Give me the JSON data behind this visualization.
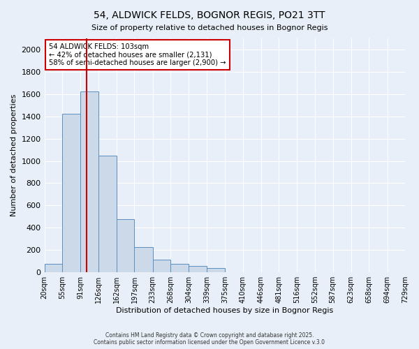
{
  "title_line1": "54, ALDWICK FELDS, BOGNOR REGIS, PO21 3TT",
  "title_line2": "Size of property relative to detached houses in Bognor Regis",
  "xlabel": "Distribution of detached houses by size in Bognor Regis",
  "ylabel": "Number of detached properties",
  "bin_labels": [
    "20sqm",
    "55sqm",
    "91sqm",
    "126sqm",
    "162sqm",
    "197sqm",
    "233sqm",
    "268sqm",
    "304sqm",
    "339sqm",
    "375sqm",
    "410sqm",
    "446sqm",
    "481sqm",
    "516sqm",
    "552sqm",
    "587sqm",
    "623sqm",
    "658sqm",
    "694sqm",
    "729sqm"
  ],
  "bin_edges": [
    20,
    55,
    91,
    126,
    162,
    197,
    233,
    268,
    304,
    339,
    375,
    410,
    446,
    481,
    516,
    552,
    587,
    623,
    658,
    694,
    729
  ],
  "bar_heights": [
    75,
    1425,
    1625,
    1050,
    475,
    225,
    115,
    75,
    60,
    40,
    0,
    0,
    0,
    0,
    0,
    0,
    0,
    0,
    0,
    0
  ],
  "bar_color": "#ccd9e8",
  "bar_edgecolor": "#5a8fc0",
  "property_line_x": 103,
  "property_line_color": "#cc0000",
  "annotation_text": "54 ALDWICK FELDS: 103sqm\n← 42% of detached houses are smaller (2,131)\n58% of semi-detached houses are larger (2,900) →",
  "annotation_box_edgecolor": "#cc0000",
  "annotation_box_facecolor": "#ffffff",
  "ylim": [
    0,
    2100
  ],
  "yticks": [
    0,
    200,
    400,
    600,
    800,
    1000,
    1200,
    1400,
    1600,
    1800,
    2000
  ],
  "background_color": "#e8eff8",
  "axes_background": "#e8eff8",
  "footer_line1": "Contains HM Land Registry data © Crown copyright and database right 2025.",
  "footer_line2": "Contains public sector information licensed under the Open Government Licence v.3.0"
}
